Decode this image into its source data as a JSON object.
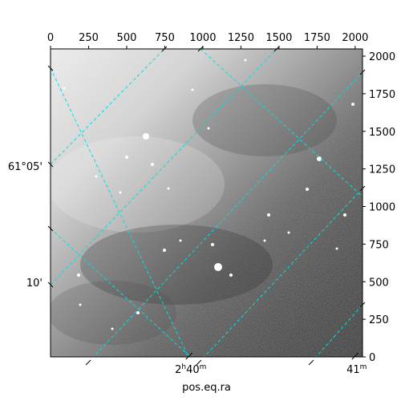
{
  "chart_data": {
    "type": "image",
    "title": "",
    "xlabel": "pos.eq.ra",
    "ylabel": "",
    "pixel_axes": {
      "x": {
        "ticks": [
          0,
          250,
          500,
          750,
          1000,
          1250,
          1500,
          1750,
          2000
        ],
        "range": [
          0,
          2048
        ]
      },
      "y": {
        "ticks": [
          0,
          250,
          500,
          750,
          1000,
          1250,
          1500,
          1750,
          2000
        ],
        "range": [
          0,
          2048
        ]
      }
    },
    "world_axes": {
      "ra": {
        "ticks": [
          {
            "label": "2h40m",
            "x": 920
          },
          {
            "label": "41m",
            "x": 2010
          }
        ]
      },
      "dec": {
        "ticks": [
          {
            "label": "61°05'",
            "y": 1270
          },
          {
            "label": "10'",
            "y": 495
          }
        ]
      }
    },
    "grid": true,
    "grid_color": "#00e0e0",
    "image": {
      "colormap": "gray",
      "description_colors": {
        "bright": "#f2f2f2",
        "dark": "#0a0a0a"
      }
    }
  }
}
